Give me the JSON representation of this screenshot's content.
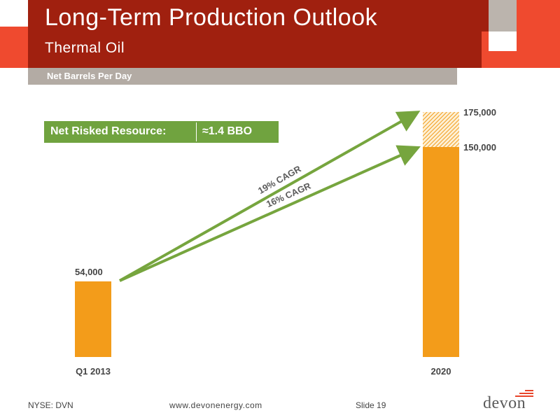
{
  "header": {
    "title": "Long-Term Production Outlook",
    "subtitle": "Thermal Oil",
    "subbar_label": "Net Barrels Per Day"
  },
  "resource": {
    "label": "Net Risked Resource:",
    "value": "≈1.4 BBO"
  },
  "footer": {
    "ticker": "NYSE: DVN",
    "website": "www.devonenergy.com",
    "slide": "Slide 19",
    "logo": "devon"
  },
  "colors": {
    "header_red": "#a0200f",
    "accent_red": "#ef4a2f",
    "gray": "#b3aba4",
    "bar_orange": "#f39c1a",
    "arrow_green": "#76a53e"
  },
  "chart_data": {
    "type": "bar",
    "categories": [
      "Q1 2013",
      "2020"
    ],
    "series": [
      {
        "values": [
          54000,
          150000
        ]
      },
      {
        "values": [
          0,
          25000
        ]
      }
    ],
    "data_labels": [
      "54,000",
      "150,000",
      "175,000"
    ],
    "annotations": [
      {
        "text": "19% CAGR",
        "from": [
          0,
          54000
        ],
        "to": [
          1,
          175000
        ]
      },
      {
        "text": "16% CAGR",
        "from": [
          0,
          54000
        ],
        "to": [
          1,
          150000
        ]
      }
    ],
    "ylim": [
      0,
      175000
    ],
    "stacked": true,
    "grid": false
  }
}
